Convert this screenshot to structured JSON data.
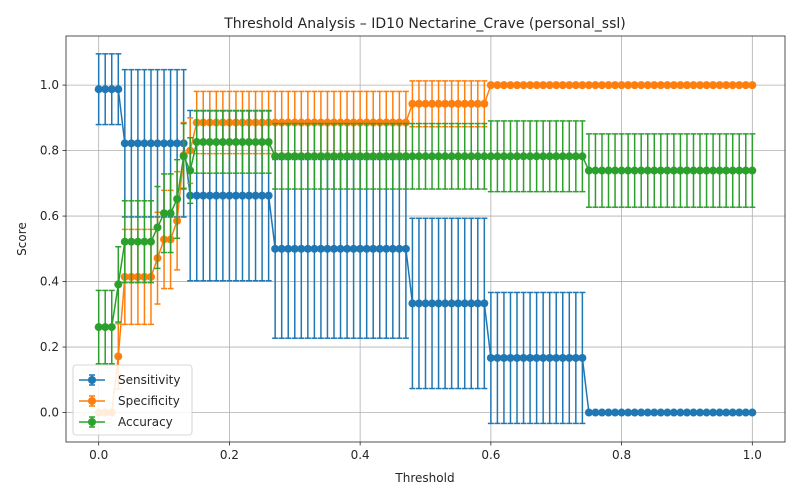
{
  "chart_data": {
    "type": "line",
    "title": "Threshold Analysis – ID10 Nectarine_Crave (personal_ssl)",
    "xlabel": "Threshold",
    "ylabel": "Score",
    "xlim": [
      -0.05,
      1.05
    ],
    "ylim": [
      -0.09,
      1.15
    ],
    "grid": true,
    "legend_position": "lower-left",
    "x_ticks": [
      0.0,
      0.2,
      0.4,
      0.6,
      0.8,
      1.0
    ],
    "x_tick_labels": [
      "0.0",
      "0.2",
      "0.4",
      "0.6",
      "0.8",
      "1.0"
    ],
    "y_ticks": [
      0.0,
      0.2,
      0.4,
      0.6,
      0.8,
      1.0
    ],
    "y_tick_labels": [
      "0.0",
      "0.2",
      "0.4",
      "0.6",
      "0.8",
      "1.0"
    ],
    "x": {
      "start": 0.0,
      "stop": 1.0,
      "count": 101
    },
    "series": [
      {
        "name": "Sensitivity",
        "color": "#1f77b4",
        "segments": [
          {
            "from": 0.0,
            "to": 0.03,
            "value": 0.9875,
            "err": 0.108
          },
          {
            "from": 0.04,
            "to": 0.13,
            "value": 0.8222,
            "err": 0.225
          },
          {
            "from": 0.14,
            "to": 0.26,
            "value": 0.6625,
            "err": 0.26
          },
          {
            "from": 0.27,
            "to": 0.47,
            "value": 0.5,
            "err": 0.273
          },
          {
            "from": 0.48,
            "to": 0.59,
            "value": 0.3333,
            "err": 0.26
          },
          {
            "from": 0.6,
            "to": 0.74,
            "value": 0.1667,
            "err": 0.2
          },
          {
            "from": 0.75,
            "to": 1.0,
            "value": 0.0,
            "err": 0.0
          }
        ]
      },
      {
        "name": "Specificity",
        "color": "#ff7f0e",
        "segments": [
          {
            "from": 0.0,
            "to": 0.02,
            "value": 0.0,
            "err": 0.0
          },
          {
            "from": 0.03,
            "to": 0.03,
            "value": 0.1714,
            "err": 0.1
          },
          {
            "from": 0.04,
            "to": 0.08,
            "value": 0.4143,
            "err": 0.145
          },
          {
            "from": 0.09,
            "to": 0.09,
            "value": 0.4714,
            "err": 0.14
          },
          {
            "from": 0.1,
            "to": 0.11,
            "value": 0.5286,
            "err": 0.15
          },
          {
            "from": 0.12,
            "to": 0.12,
            "value": 0.5857,
            "err": 0.15
          },
          {
            "from": 0.13,
            "to": 0.13,
            "value": 0.7857,
            "err": 0.1
          },
          {
            "from": 0.14,
            "to": 0.14,
            "value": 0.8,
            "err": 0.1
          },
          {
            "from": 0.15,
            "to": 0.47,
            "value": 0.8857,
            "err": 0.095
          },
          {
            "from": 0.48,
            "to": 0.59,
            "value": 0.9429,
            "err": 0.07
          },
          {
            "from": 0.6,
            "to": 1.0,
            "value": 1.0,
            "err": 0.0
          }
        ]
      },
      {
        "name": "Accuracy",
        "color": "#2ca02c",
        "segments": [
          {
            "from": 0.0,
            "to": 0.02,
            "value": 0.2609,
            "err": 0.112
          },
          {
            "from": 0.03,
            "to": 0.03,
            "value": 0.3913,
            "err": 0.115
          },
          {
            "from": 0.04,
            "to": 0.08,
            "value": 0.5217,
            "err": 0.125
          },
          {
            "from": 0.09,
            "to": 0.09,
            "value": 0.5652,
            "err": 0.125
          },
          {
            "from": 0.1,
            "to": 0.11,
            "value": 0.6087,
            "err": 0.12
          },
          {
            "from": 0.12,
            "to": 0.12,
            "value": 0.6522,
            "err": 0.12
          },
          {
            "from": 0.13,
            "to": 0.13,
            "value": 0.7826,
            "err": 0.1
          },
          {
            "from": 0.14,
            "to": 0.14,
            "value": 0.7391,
            "err": 0.1
          },
          {
            "from": 0.15,
            "to": 0.26,
            "value": 0.8261,
            "err": 0.095
          },
          {
            "from": 0.27,
            "to": 0.59,
            "value": 0.7826,
            "err": 0.1
          },
          {
            "from": 0.6,
            "to": 0.74,
            "value": 0.7826,
            "err": 0.108
          },
          {
            "from": 0.75,
            "to": 1.0,
            "value": 0.7391,
            "err": 0.112
          }
        ]
      }
    ]
  }
}
